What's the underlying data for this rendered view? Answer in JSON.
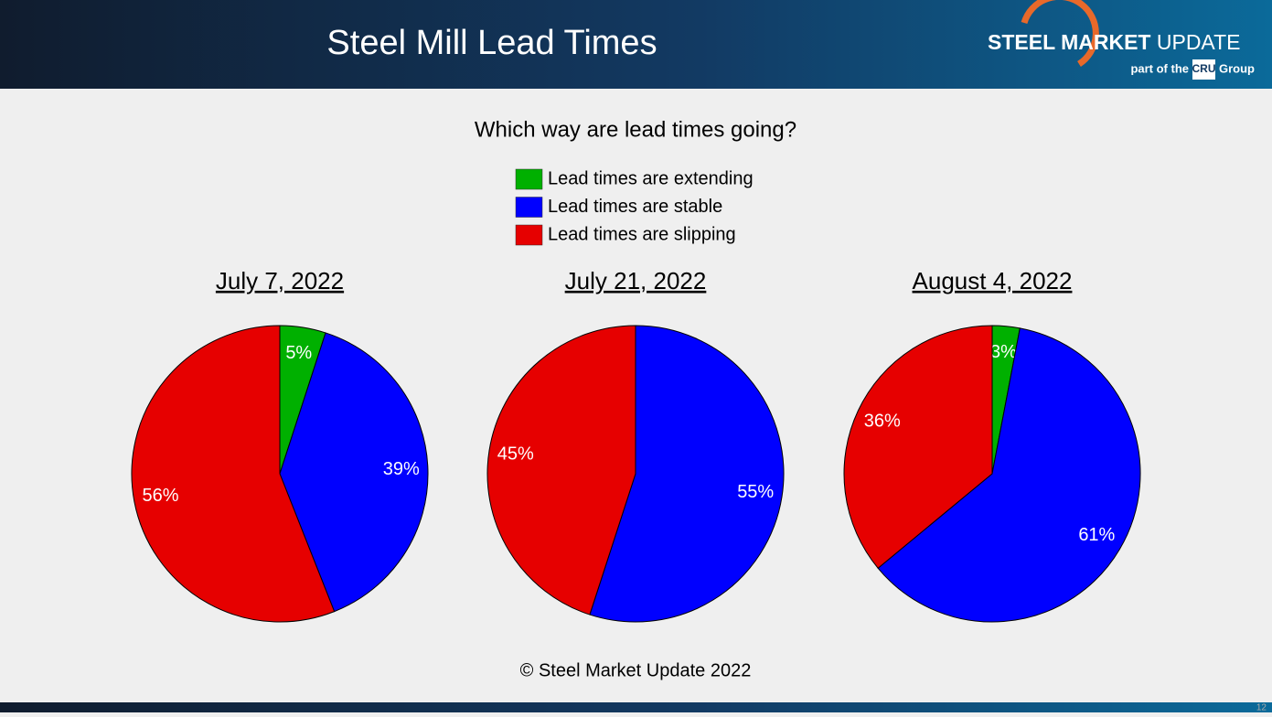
{
  "header": {
    "title": "Steel Mill Lead Times",
    "logo": {
      "name_bold": "STEEL MARKET",
      "name": "UPDATE",
      "tagline_pre": "part of the",
      "badge": "CRU",
      "tagline_post": "Group"
    }
  },
  "question": "Which way are lead times going?",
  "chart_data": [
    {
      "type": "pie",
      "title": "July 7, 2022",
      "categories": [
        "Lead times are extending",
        "Lead times are stable",
        "Lead times are slipping"
      ],
      "colors": [
        "#00b000",
        "#0000ff",
        "#e60000"
      ],
      "values": [
        5,
        39,
        56
      ],
      "value_labels": [
        "5%",
        "39%",
        "56%"
      ]
    },
    {
      "type": "pie",
      "title": "July 21, 2022",
      "categories": [
        "Lead times are extending",
        "Lead times are stable",
        "Lead times are slipping"
      ],
      "colors": [
        "#00b000",
        "#0000ff",
        "#e60000"
      ],
      "values": [
        null,
        55,
        45
      ],
      "value_labels": [
        null,
        "55%",
        "45%"
      ]
    },
    {
      "type": "pie",
      "title": "August 4, 2022",
      "categories": [
        "Lead times are extending",
        "Lead times are stable",
        "Lead times are slipping"
      ],
      "colors": [
        "#00b000",
        "#0000ff",
        "#e60000"
      ],
      "values": [
        3,
        61,
        36
      ],
      "value_labels": [
        "3%",
        "61%",
        "36%"
      ]
    }
  ],
  "footer": "© Steel Market Update 2022",
  "page_number": "12"
}
